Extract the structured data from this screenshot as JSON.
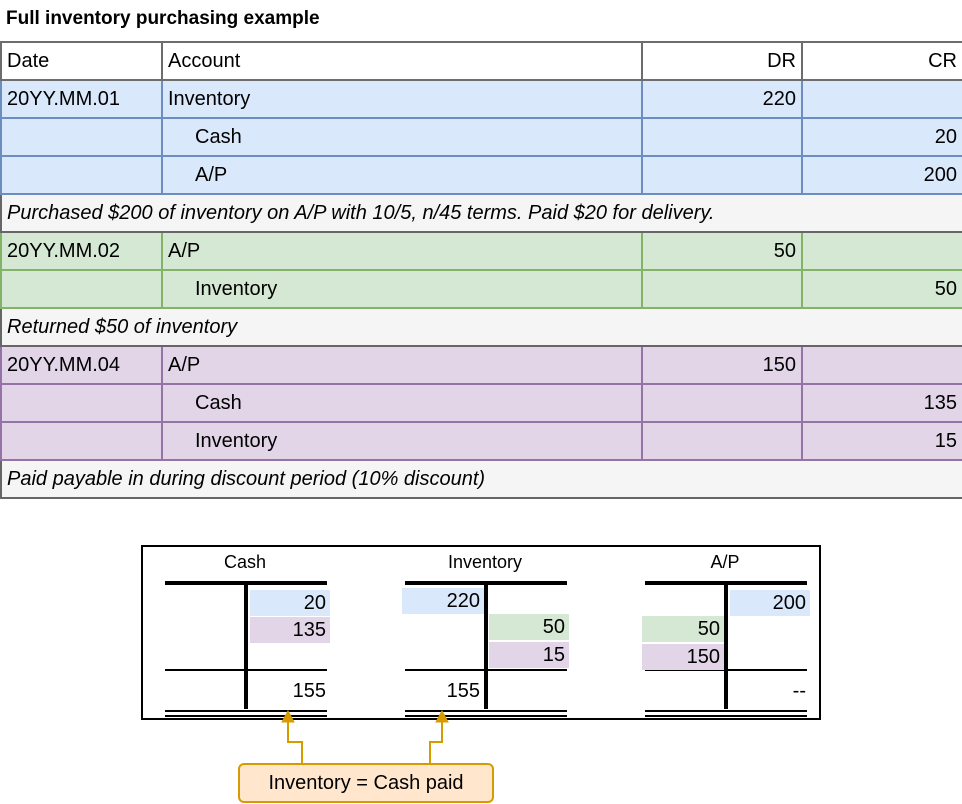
{
  "title": "Full inventory purchasing example",
  "journal": {
    "headers": [
      "Date",
      "Account",
      "DR",
      "CR"
    ],
    "entries": [
      {
        "lines": [
          {
            "date": "20YY.MM.01",
            "account": "Inventory",
            "dr": "220",
            "cr": ""
          },
          {
            "date": "",
            "account": "Cash",
            "dr": "",
            "cr": "20"
          },
          {
            "date": "",
            "account": "A/P",
            "dr": "",
            "cr": "200"
          }
        ],
        "note": "Purchased $200 of inventory on A/P with 10/5, n/45 terms.  Paid $20 for delivery."
      },
      {
        "lines": [
          {
            "date": "20YY.MM.02",
            "account": "A/P",
            "dr": "50",
            "cr": ""
          },
          {
            "date": "",
            "account": "Inventory",
            "dr": "",
            "cr": "50"
          }
        ],
        "note": "Returned $50 of inventory"
      },
      {
        "lines": [
          {
            "date": "20YY.MM.04",
            "account": "A/P",
            "dr": "150",
            "cr": ""
          },
          {
            "date": "",
            "account": "Cash",
            "dr": "",
            "cr": "135"
          },
          {
            "date": "",
            "account": "Inventory",
            "dr": "",
            "cr": "15"
          }
        ],
        "note": "Paid payable in during discount period (10% discount)"
      }
    ]
  },
  "t_accounts": [
    {
      "name": "Cash",
      "debits": [],
      "credits": [
        "20",
        "135"
      ],
      "debit_total": "",
      "credit_total": "155"
    },
    {
      "name": "Inventory",
      "debits": [
        "220"
      ],
      "credits": [
        "50",
        "15"
      ],
      "debit_total": "155",
      "credit_total": ""
    },
    {
      "name": "A/P",
      "debits": [
        "50",
        "150"
      ],
      "credits": [
        "200"
      ],
      "debit_total": "",
      "credit_total": "--"
    }
  ],
  "colors": {
    "entry1": "#dae8fc",
    "entry2": "#d5e8d4",
    "entry3": "#e1d5e7",
    "callout_fill": "#ffe6cc",
    "callout_stroke": "#d79b00"
  },
  "callout": "Inventory = Cash paid"
}
